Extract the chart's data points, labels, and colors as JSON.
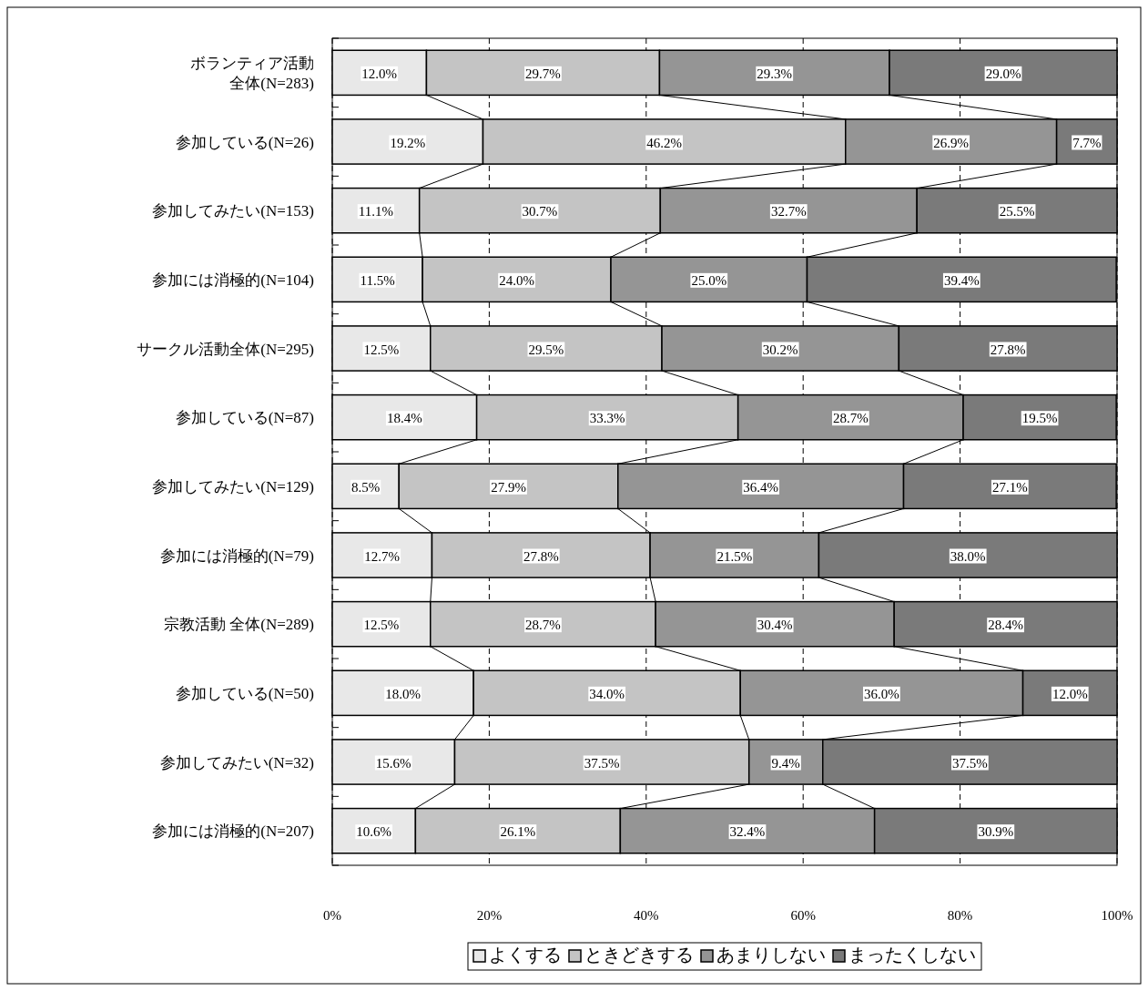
{
  "chart_data": {
    "type": "bar",
    "orientation": "horizontal",
    "stacked": true,
    "categories": [
      "ボランティア活動全体(N=283)",
      "参加している(N=26)",
      "参加してみたい(N=153)",
      "参加には消極的(N=104)",
      "サークル活動全体(N=295)",
      "参加している(N=87)",
      "参加してみたい(N=129)",
      "参加には消極的(N=79)",
      "宗教活動 全体(N=289)",
      "参加している(N=50)",
      "参加してみたい(N=32)",
      "参加には消極的(N=207)"
    ],
    "series": [
      {
        "name": "よくする",
        "color": "#e8e8e8",
        "values": [
          12.0,
          19.2,
          11.1,
          11.5,
          12.5,
          18.4,
          8.5,
          12.7,
          12.5,
          18.0,
          15.6,
          10.6
        ],
        "value_labels": [
          "12.0%",
          "19.2%",
          "11.1%",
          "11.5%",
          "12.5%",
          "18.4%",
          "8.5%",
          "12.7%",
          "12.5%",
          "18.0%",
          "15.6%",
          "10.6%"
        ]
      },
      {
        "name": "ときどきする",
        "color": "#c4c4c4",
        "values": [
          29.7,
          46.2,
          30.7,
          24.0,
          29.5,
          33.3,
          27.9,
          27.8,
          28.7,
          34.0,
          37.5,
          26.1
        ],
        "value_labels": [
          "29.7%",
          "46.2%",
          "30.7%",
          "24.0%",
          "29.5%",
          "33.3%",
          "27.9%",
          "27.8%",
          "28.7%",
          "34.0%",
          "37.5%",
          "26.1%"
        ]
      },
      {
        "name": "あまりしない",
        "color": "#959595",
        "values": [
          29.3,
          26.9,
          32.7,
          25.0,
          30.2,
          28.7,
          36.4,
          21.5,
          30.4,
          36.0,
          9.4,
          32.4
        ],
        "value_labels": [
          "29.3%",
          "26.9%",
          "32.7%",
          "25.0%",
          "30.2%",
          "28.7%",
          "36.4%",
          "21.5%",
          "30.4%",
          "36.0%",
          "9.4%",
          "32.4%"
        ]
      },
      {
        "name": "まったくしない",
        "color": "#7a7a7a",
        "values": [
          29.0,
          7.7,
          25.5,
          39.4,
          27.8,
          19.5,
          27.1,
          38.0,
          28.4,
          12.0,
          37.5,
          30.9
        ],
        "value_labels": [
          "29.0%",
          "7.7%",
          "25.5%",
          "39.4%",
          "27.8%",
          "19.5%",
          "27.1%",
          "38.0%",
          "28.4%",
          "12.0%",
          "37.5%",
          "30.9%"
        ]
      }
    ],
    "xlim": [
      0,
      100
    ],
    "xticks": [
      {
        "value": 0,
        "label": "0%"
      },
      {
        "value": 20,
        "label": "20%"
      },
      {
        "value": 40,
        "label": "40%"
      },
      {
        "value": 60,
        "label": "60%"
      },
      {
        "value": 80,
        "label": "80%"
      },
      {
        "value": 100,
        "label": "100%"
      }
    ],
    "grid": "x",
    "legend": "bottom"
  }
}
